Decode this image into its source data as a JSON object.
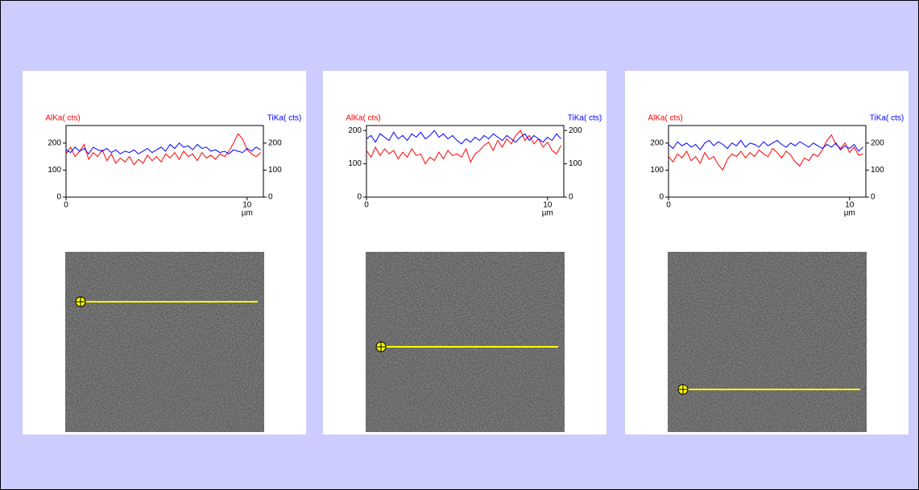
{
  "chart_data": [
    {
      "type": "line",
      "xlabel": "µm",
      "x": [
        0,
        0.25,
        0.5,
        0.75,
        1,
        1.25,
        1.5,
        1.75,
        2,
        2.25,
        2.5,
        2.75,
        3,
        3.25,
        3.5,
        3.75,
        4,
        4.25,
        4.5,
        4.75,
        5,
        5.25,
        5.5,
        5.75,
        6,
        6.25,
        6.5,
        6.75,
        7,
        7.25,
        7.5,
        7.75,
        8,
        8.25,
        8.5,
        8.75,
        9,
        9.25,
        9.5,
        9.75,
        10,
        10.25,
        10.5,
        10.75
      ],
      "xlim": [
        0,
        10.9
      ],
      "xticks": [
        0,
        10
      ],
      "ylim": [
        0,
        265
      ],
      "yticks": [
        0,
        100,
        200
      ],
      "y2lim": [
        0,
        265
      ],
      "y2ticks": [
        0,
        100,
        200
      ],
      "series": [
        {
          "name": "AlKa( cts)",
          "color": "#ff0000",
          "values": [
            160,
            185,
            150,
            170,
            195,
            140,
            165,
            150,
            175,
            135,
            160,
            125,
            145,
            130,
            150,
            120,
            140,
            125,
            155,
            135,
            150,
            130,
            160,
            145,
            165,
            140,
            170,
            150,
            160,
            135,
            165,
            145,
            155,
            140,
            160,
            150,
            170,
            200,
            235,
            215,
            175,
            160,
            150,
            165
          ]
        },
        {
          "name": "TiKa( cts)",
          "color": "#0000ff",
          "axis": "y2",
          "values": [
            175,
            165,
            185,
            170,
            180,
            160,
            185,
            175,
            170,
            180,
            165,
            175,
            160,
            170,
            165,
            175,
            160,
            170,
            180,
            165,
            175,
            185,
            170,
            195,
            180,
            200,
            185,
            190,
            175,
            195,
            180,
            185,
            170,
            175,
            165,
            170,
            160,
            175,
            170,
            165,
            180,
            170,
            185,
            175
          ]
        }
      ]
    },
    {
      "type": "line",
      "xlabel": "µm",
      "x": [
        0,
        0.25,
        0.5,
        0.75,
        1,
        1.25,
        1.5,
        1.75,
        2,
        2.25,
        2.5,
        2.75,
        3,
        3.25,
        3.5,
        3.75,
        4,
        4.25,
        4.5,
        4.75,
        5,
        5.25,
        5.5,
        5.75,
        6,
        6.25,
        6.5,
        6.75,
        7,
        7.25,
        7.5,
        7.75,
        8,
        8.25,
        8.5,
        8.75,
        9,
        9.25,
        9.5,
        9.75,
        10,
        10.25,
        10.5,
        10.75
      ],
      "xlim": [
        0,
        10.9
      ],
      "xticks": [
        0,
        10
      ],
      "ylim": [
        0,
        215
      ],
      "yticks": [
        0,
        100,
        200
      ],
      "y2lim": [
        0,
        215
      ],
      "y2ticks": [
        0,
        100,
        200
      ],
      "series": [
        {
          "name": "AlKa( cts)",
          "color": "#ff0000",
          "values": [
            140,
            120,
            150,
            125,
            145,
            130,
            140,
            115,
            135,
            120,
            145,
            125,
            130,
            100,
            120,
            110,
            135,
            115,
            140,
            125,
            130,
            120,
            145,
            105,
            130,
            140,
            155,
            165,
            140,
            170,
            150,
            175,
            160,
            185,
            200,
            170,
            185,
            160,
            175,
            150,
            165,
            140,
            130,
            155
          ]
        },
        {
          "name": "TiKa( cts)",
          "color": "#0000ff",
          "axis": "y2",
          "values": [
            175,
            185,
            165,
            190,
            180,
            170,
            195,
            175,
            185,
            170,
            190,
            180,
            195,
            175,
            185,
            200,
            180,
            190,
            175,
            185,
            170,
            160,
            175,
            165,
            180,
            170,
            185,
            175,
            190,
            180,
            170,
            185,
            175,
            165,
            180,
            190,
            170,
            185,
            175,
            165,
            180,
            170,
            190,
            175
          ]
        }
      ]
    },
    {
      "type": "line",
      "xlabel": "µm",
      "x": [
        0,
        0.25,
        0.5,
        0.75,
        1,
        1.25,
        1.5,
        1.75,
        2,
        2.25,
        2.5,
        2.75,
        3,
        3.25,
        3.5,
        3.75,
        4,
        4.25,
        4.5,
        4.75,
        5,
        5.25,
        5.5,
        5.75,
        6,
        6.25,
        6.5,
        6.75,
        7,
        7.25,
        7.5,
        7.75,
        8,
        8.25,
        8.5,
        8.75,
        9,
        9.25,
        9.5,
        9.75,
        10,
        10.25,
        10.5,
        10.75
      ],
      "xlim": [
        0,
        10.9
      ],
      "xticks": [
        0,
        10
      ],
      "ylim": [
        0,
        265
      ],
      "yticks": [
        0,
        100,
        200
      ],
      "y2lim": [
        0,
        265
      ],
      "y2ticks": [
        0,
        100,
        200
      ],
      "series": [
        {
          "name": "AlKa( cts)",
          "color": "#ff0000",
          "values": [
            150,
            130,
            160,
            145,
            170,
            135,
            150,
            125,
            165,
            140,
            150,
            120,
            100,
            140,
            160,
            150,
            170,
            145,
            165,
            150,
            175,
            160,
            150,
            180,
            165,
            145,
            170,
            155,
            130,
            115,
            145,
            135,
            160,
            150,
            175,
            210,
            230,
            195,
            180,
            200,
            165,
            185,
            155,
            160
          ]
        },
        {
          "name": "TiKa( cts)",
          "color": "#0000ff",
          "axis": "y2",
          "values": [
            195,
            180,
            205,
            190,
            200,
            185,
            195,
            175,
            200,
            210,
            190,
            205,
            195,
            180,
            200,
            190,
            210,
            185,
            200,
            195,
            185,
            205,
            190,
            200,
            210,
            195,
            185,
            200,
            190,
            205,
            195,
            185,
            200,
            190,
            180,
            195,
            185,
            200,
            175,
            190,
            180,
            195,
            170,
            185
          ]
        }
      ]
    }
  ]
}
